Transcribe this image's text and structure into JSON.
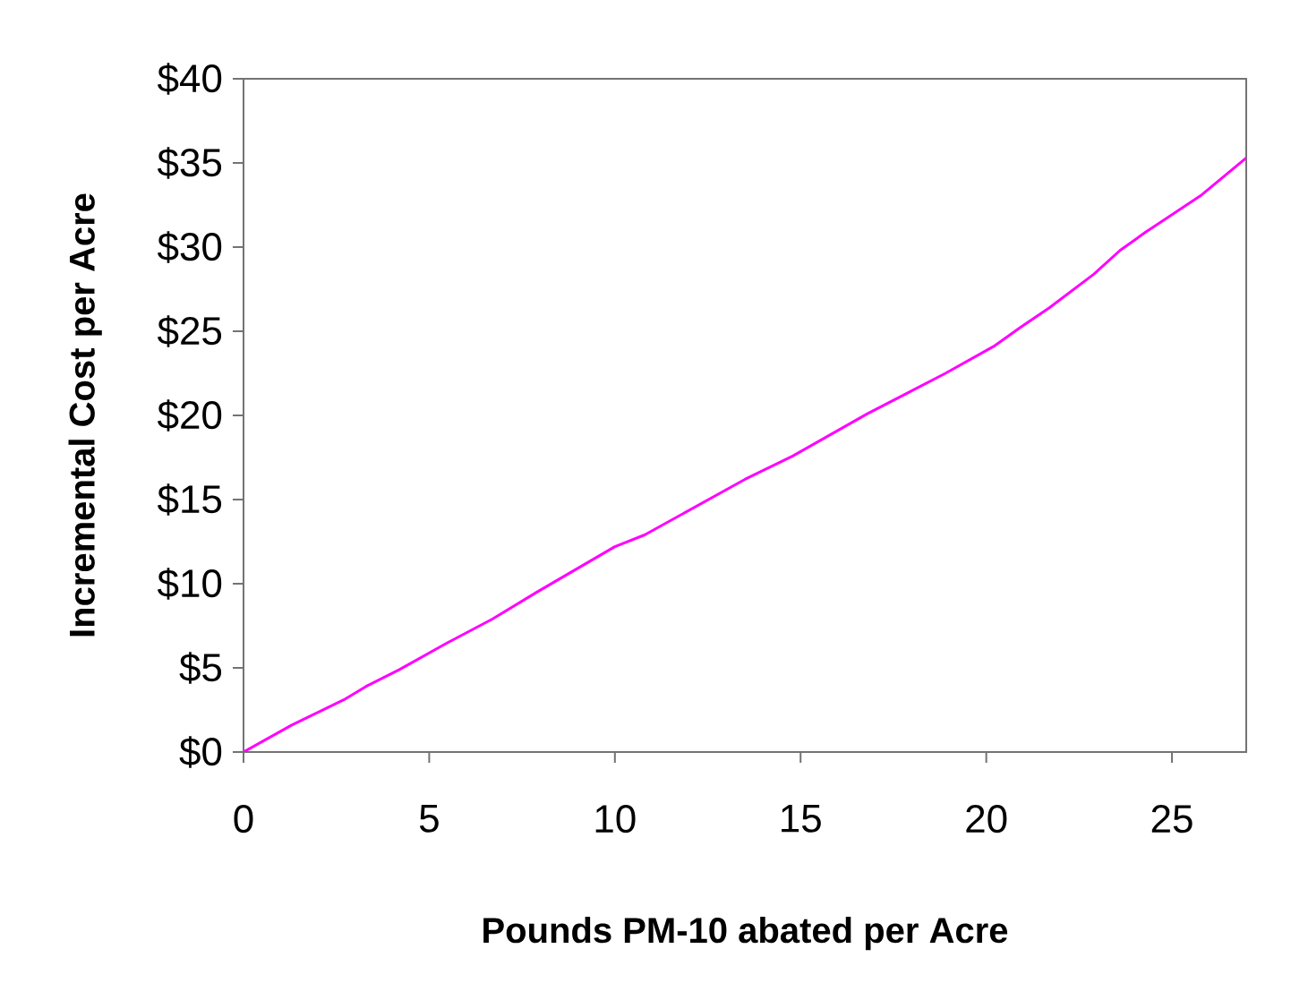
{
  "chart_data": {
    "type": "line",
    "xlabel": "Pounds PM-10 abated per Acre",
    "ylabel": "Incremental Cost per Acre",
    "x": [
      0,
      1.3,
      2.7,
      3.3,
      4.2,
      5.5,
      6.7,
      7.9,
      10.0,
      10.8,
      13.5,
      14.8,
      16.8,
      18.9,
      20.2,
      20.9,
      21.7,
      22.9,
      23.6,
      24.3,
      25.8,
      27.0
    ],
    "series": [
      {
        "color": "#ff00ff",
        "values": [
          0,
          1.6,
          3.1,
          3.9,
          4.9,
          6.5,
          7.9,
          9.5,
          12.2,
          12.9,
          16.2,
          17.6,
          20.1,
          22.5,
          24.1,
          25.2,
          26.4,
          28.4,
          29.8,
          30.9,
          33.1,
          35.3
        ]
      }
    ],
    "xlim": [
      0,
      27
    ],
    "ylim": [
      0,
      40
    ],
    "xticks": [
      0,
      5,
      10,
      15,
      20,
      25
    ],
    "yticks": [
      {
        "value": 0,
        "label": "$0"
      },
      {
        "value": 5,
        "label": "$5"
      },
      {
        "value": 10,
        "label": "$10"
      },
      {
        "value": 15,
        "label": "$15"
      },
      {
        "value": 20,
        "label": "$20"
      },
      {
        "value": 25,
        "label": "$25"
      },
      {
        "value": 30,
        "label": "$30"
      },
      {
        "value": 35,
        "label": "$35"
      },
      {
        "value": 40,
        "label": "$40"
      }
    ],
    "grid": false,
    "marker": "none",
    "line_style": "solid"
  }
}
